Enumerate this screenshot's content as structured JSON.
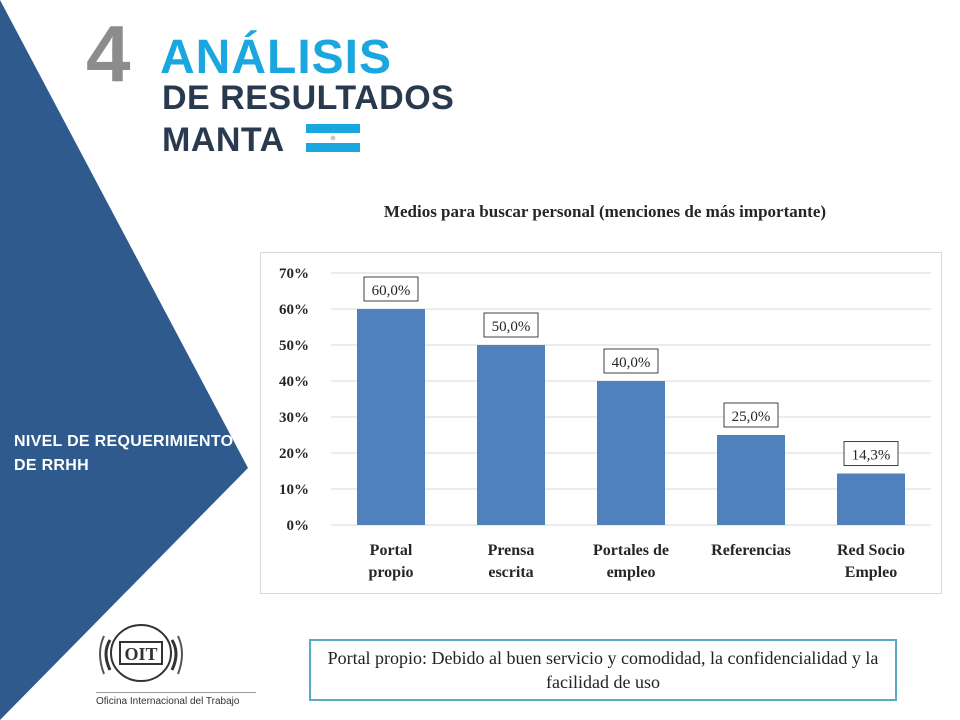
{
  "header": {
    "number": "4",
    "title": "ANÁLISIS",
    "subtitle": "DE RESULTADOS",
    "city": "MANTA"
  },
  "sidebar": {
    "label": "NIVEL DE REQUERIMIENTO DE RRHH",
    "color": "#2e5a8e"
  },
  "chart_data": {
    "type": "bar",
    "title": "Medios para buscar personal (menciones de más importante)",
    "categories": [
      "Portal propio",
      "Prensa escrita",
      "Portales de empleo",
      "Referencias",
      "Red Socio Empleo"
    ],
    "values": [
      60.0,
      50.0,
      40.0,
      25.0,
      14.3
    ],
    "data_labels": [
      "60,0%",
      "50,0%",
      "40,0%",
      "25,0%",
      "14,3%"
    ],
    "y_ticks": [
      "0%",
      "10%",
      "20%",
      "30%",
      "40%",
      "50%",
      "60%",
      "70%"
    ],
    "ylim": [
      0,
      70
    ],
    "grid": true,
    "bar_color": "#4f81bd",
    "xlabel": "",
    "ylabel": ""
  },
  "note": {
    "text": "Portal propio: Debido al buen servicio y comodidad, la confidencialidad y la facilidad de uso"
  },
  "logo": {
    "caption": "Oficina Internacional del Trabajo",
    "letters": "OIT"
  }
}
